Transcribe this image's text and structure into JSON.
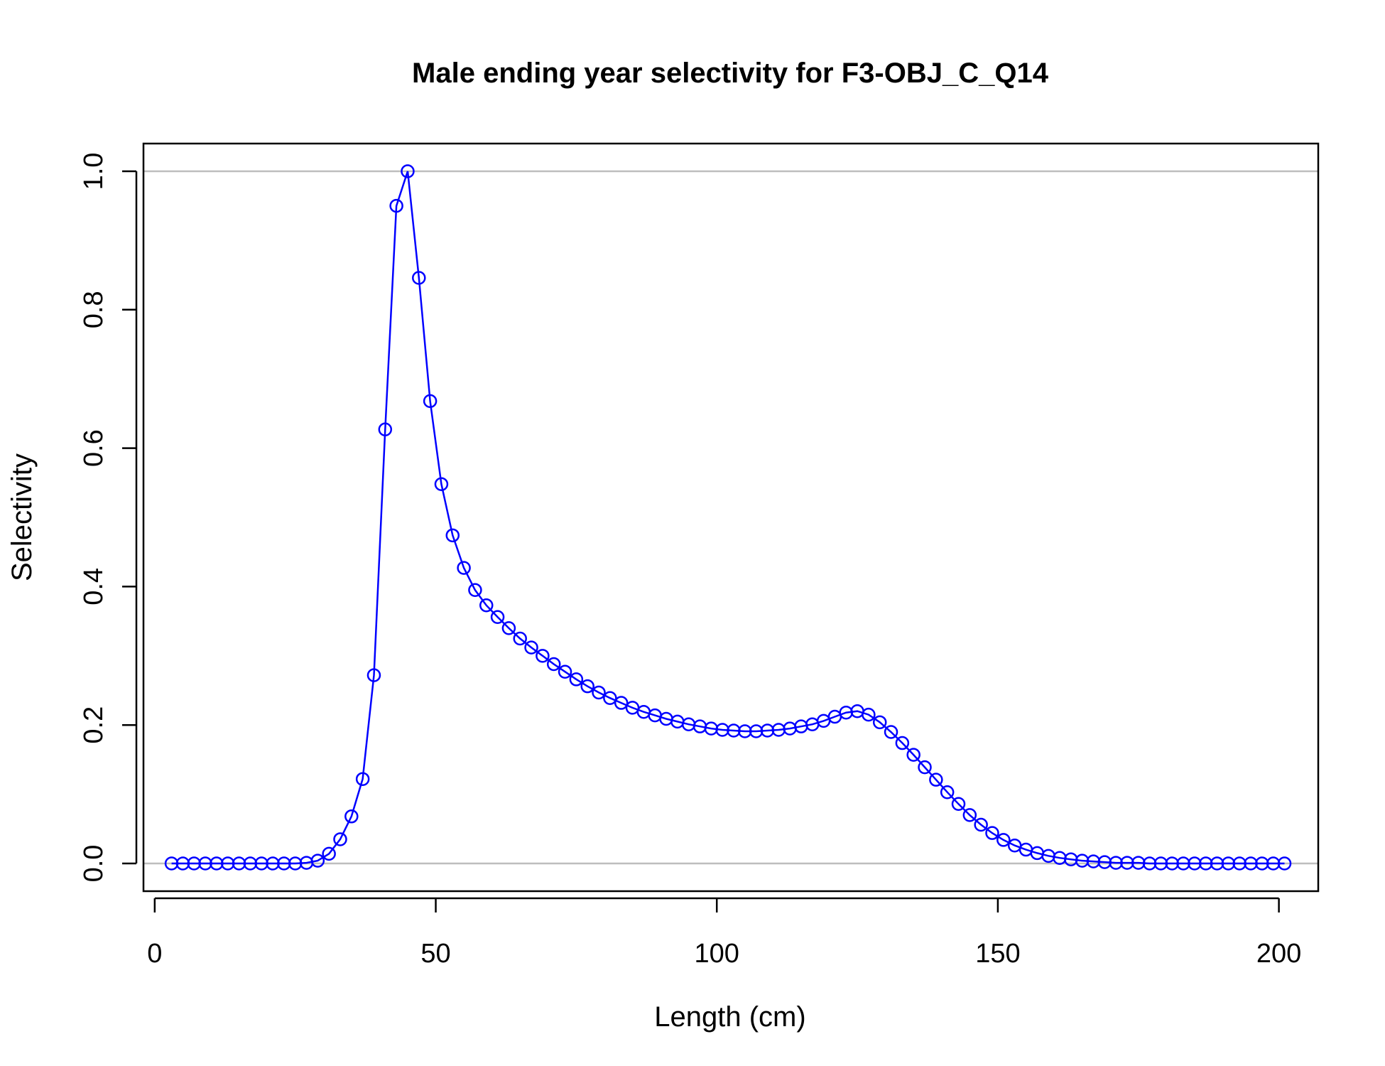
{
  "chart_data": {
    "type": "line",
    "title": "Male ending year selectivity for F3-OBJ_C_Q14",
    "xlabel": "Length (cm)",
    "ylabel": "Selectivity",
    "xlim": [
      -2,
      207
    ],
    "ylim": [
      -0.04,
      1.04
    ],
    "xticks": [
      0,
      50,
      100,
      150,
      200
    ],
    "yticks": [
      0.0,
      0.2,
      0.4,
      0.6,
      0.8,
      1.0
    ],
    "xtick_labels": [
      "0",
      "50",
      "100",
      "150",
      "200"
    ],
    "ytick_labels": [
      "0.0",
      "0.2",
      "0.4",
      "0.6",
      "0.8",
      "1.0"
    ],
    "reference_lines": [
      0,
      1
    ],
    "grid": false,
    "legend": "none",
    "colors": {
      "series": "#0000FF",
      "reference": "#BEBEBE",
      "axes": "#000000"
    },
    "marker": "open-circle",
    "series": [
      {
        "x": [
          3,
          5,
          7,
          9,
          11,
          13,
          15,
          17,
          19,
          21,
          23,
          25,
          27,
          29,
          31,
          33,
          35,
          37,
          39,
          41,
          43,
          45,
          47,
          49,
          51,
          53,
          55,
          57,
          59,
          61,
          63,
          65,
          67,
          69,
          71,
          73,
          75,
          77,
          79,
          81,
          83,
          85,
          87,
          89,
          91,
          93,
          95,
          97,
          99,
          101,
          103,
          105,
          107,
          109,
          111,
          113,
          115,
          117,
          119,
          121,
          123,
          125,
          127,
          129,
          131,
          133,
          135,
          137,
          139,
          141,
          143,
          145,
          147,
          149,
          151,
          153,
          155,
          157,
          159,
          161,
          163,
          165,
          167,
          169,
          171,
          173,
          175,
          177,
          179,
          181,
          183,
          185,
          187,
          189,
          191,
          193,
          195,
          197,
          199,
          201
        ],
        "values": [
          0,
          0,
          0,
          0,
          0,
          0,
          0,
          0,
          0,
          0,
          0,
          0,
          0.001,
          0.004,
          0.014,
          0.035,
          0.068,
          0.122,
          0.272,
          0.627,
          0.95,
          1.0,
          0.846,
          0.668,
          0.548,
          0.474,
          0.427,
          0.395,
          0.373,
          0.356,
          0.34,
          0.325,
          0.312,
          0.3,
          0.288,
          0.277,
          0.266,
          0.256,
          0.247,
          0.239,
          0.232,
          0.225,
          0.219,
          0.214,
          0.209,
          0.205,
          0.201,
          0.198,
          0.195,
          0.193,
          0.192,
          0.191,
          0.191,
          0.192,
          0.193,
          0.195,
          0.198,
          0.201,
          0.206,
          0.212,
          0.218,
          0.22,
          0.215,
          0.204,
          0.19,
          0.174,
          0.157,
          0.139,
          0.121,
          0.103,
          0.086,
          0.07,
          0.056,
          0.044,
          0.034,
          0.026,
          0.02,
          0.015,
          0.011,
          0.008,
          0.006,
          0.004,
          0.003,
          0.002,
          0.001,
          0.001,
          0.001,
          0,
          0,
          0,
          0,
          0,
          0,
          0,
          0,
          0,
          0,
          0,
          0,
          0
        ]
      }
    ]
  }
}
